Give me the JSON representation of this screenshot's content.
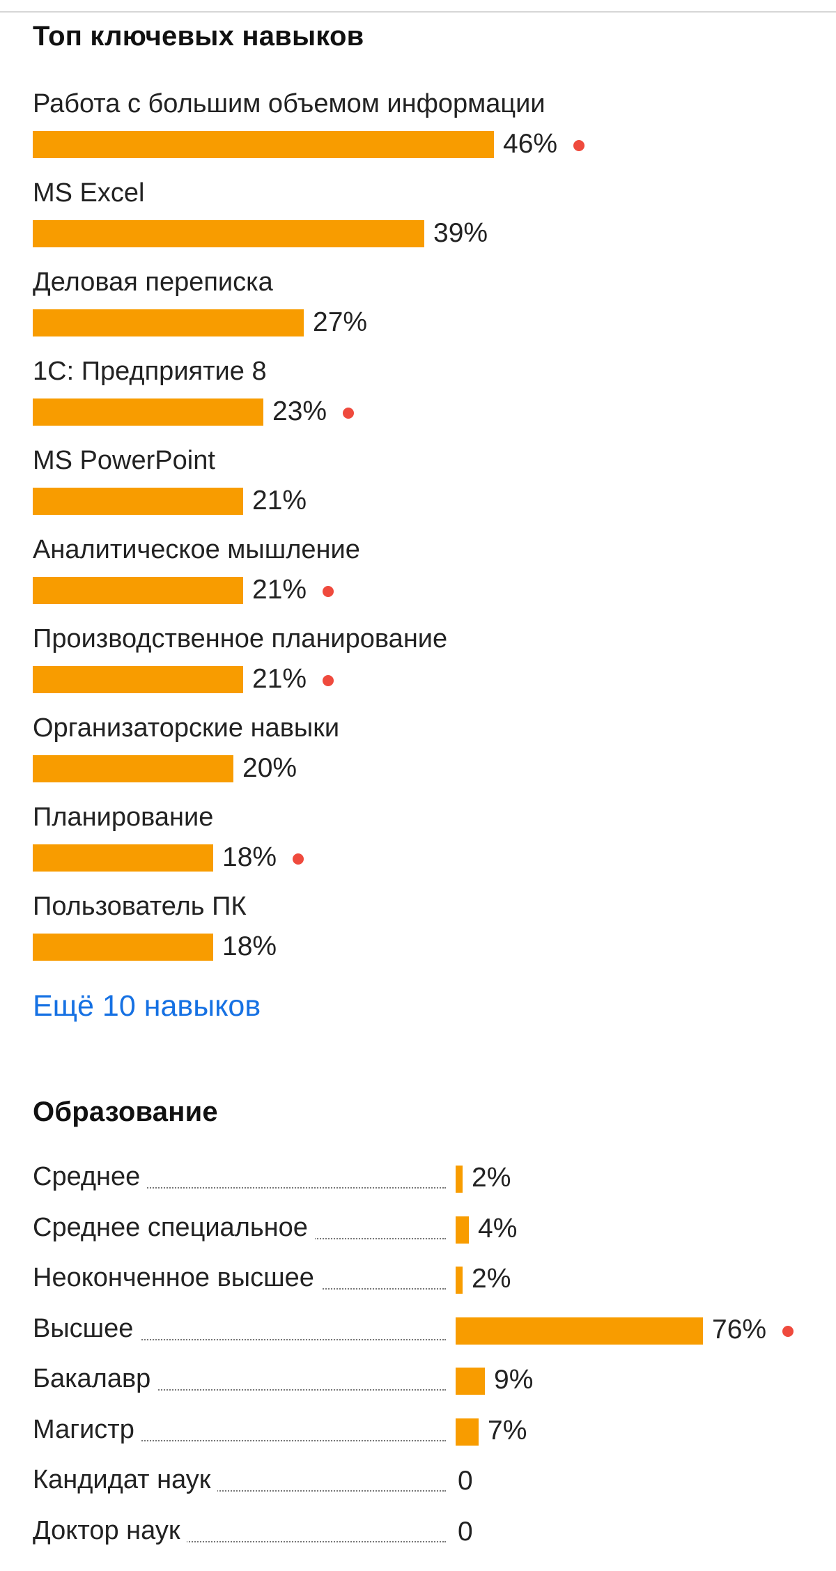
{
  "skills_section": {
    "title": "Топ ключевых навыков",
    "more_link": "Ещё 10 навыков"
  },
  "education_section": {
    "title": "Образование"
  },
  "colors": {
    "bar": "#f89c00",
    "dot": "#ef4a3d",
    "link": "#1671e3"
  },
  "chart_data": [
    {
      "type": "bar",
      "orientation": "horizontal",
      "title": "Топ ключевых навыков",
      "categories": [
        "Работа с большим объемом информации",
        "MS Excel",
        "Деловая переписка",
        "1С: Предприятие 8",
        "MS PowerPoint",
        "Аналитическое мышление",
        "Производственное планирование",
        "Организаторские навыки",
        "Планирование",
        "Пользователь ПК"
      ],
      "values": [
        46,
        39,
        27,
        23,
        21,
        21,
        21,
        20,
        18,
        18
      ],
      "labels": [
        "46%",
        "39%",
        "27%",
        "23%",
        "21%",
        "21%",
        "21%",
        "20%",
        "18%",
        "18%"
      ],
      "marked": [
        true,
        false,
        false,
        true,
        false,
        true,
        true,
        false,
        true,
        false
      ],
      "unit": "%",
      "grid": false
    },
    {
      "type": "bar",
      "orientation": "horizontal",
      "title": "Образование",
      "categories": [
        "Среднее",
        "Среднее специальное",
        "Неоконченное высшее",
        "Высшее",
        "Бакалавр",
        "Магистр",
        "Кандидат наук",
        "Доктор наук"
      ],
      "values": [
        2,
        4,
        2,
        76,
        9,
        7,
        0,
        0
      ],
      "labels": [
        "2%",
        "4%",
        "2%",
        "76%",
        "9%",
        "7%",
        "0",
        "0"
      ],
      "marked": [
        false,
        false,
        false,
        true,
        false,
        false,
        false,
        false
      ],
      "unit": "%",
      "grid": false
    }
  ]
}
